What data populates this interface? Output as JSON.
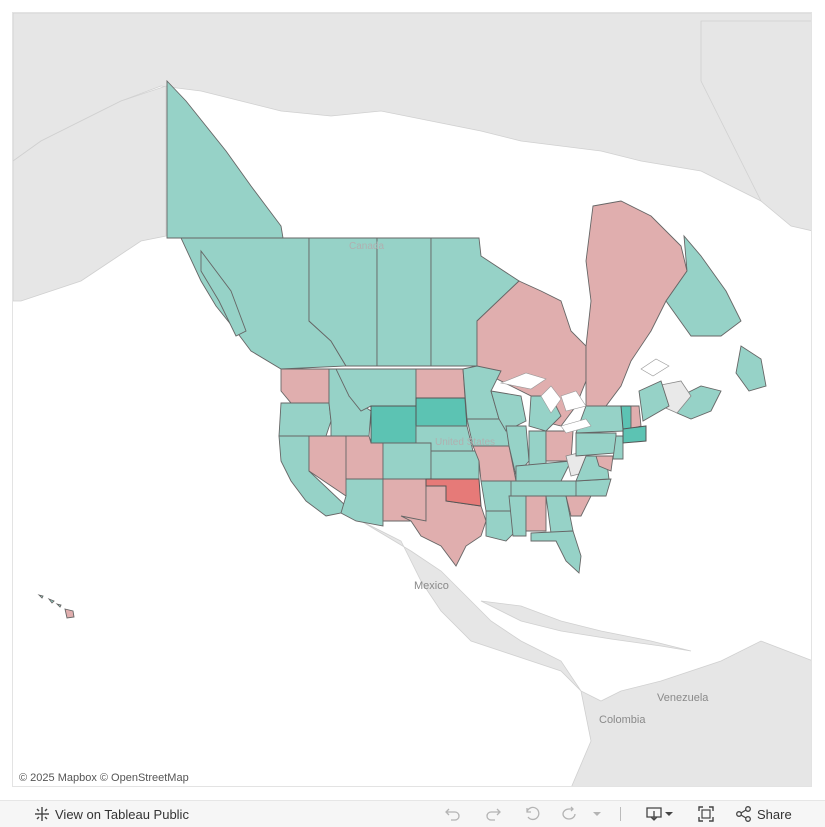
{
  "map": {
    "country_labels": [
      "Canada",
      "United States",
      "Mexico",
      "Venezuela",
      "Colombia"
    ],
    "attribution": "© 2025 Mapbox  © OpenStreetMap",
    "colors": {
      "positive": "#96d2c7",
      "positive_strong": "#5cc3b3",
      "negative": "#e0aeae",
      "negative_strong": "#e67a78",
      "no_data": "#e9e9e9",
      "basemap_land": "#e6e6e6"
    }
  },
  "toolbar": {
    "view_on_label": "View on Tableau Public",
    "share_label": "Share",
    "icons": [
      "tableau-logo-icon",
      "undo-icon",
      "redo-icon",
      "revert-icon",
      "refresh-icon",
      "pause-icon",
      "download-icon",
      "fullscreen-icon",
      "share-icon"
    ]
  }
}
